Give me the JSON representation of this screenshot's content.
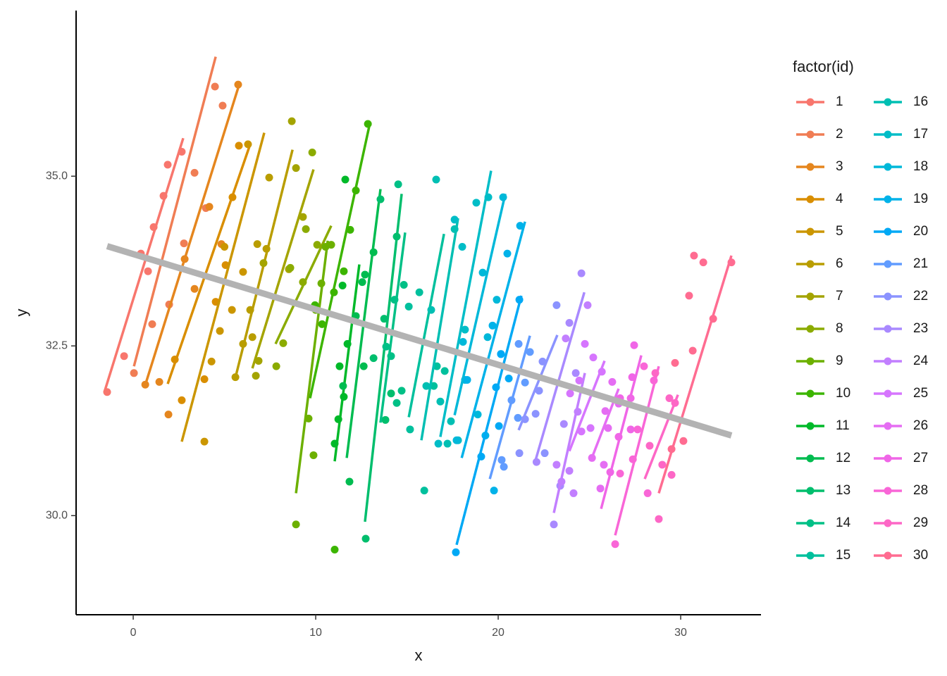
{
  "chart_data": {
    "type": "scatter",
    "x_label": "x",
    "y_label": "y",
    "legend_title": "factor(id)",
    "legend_position": "right",
    "xlim": [
      -3.13,
      34.4
    ],
    "ylim": [
      28.54,
      37.44
    ],
    "xticks": [
      0,
      10,
      20,
      30
    ],
    "yticks": [
      {
        "value": 30,
        "label": "30.0"
      },
      32.5,
      {
        "value": 35,
        "label": "35.0"
      }
    ],
    "overall_fit": {
      "color": "#B3B3B3",
      "x": [
        -1.43,
        32.78
      ],
      "y": [
        33.97,
        31.18
      ]
    },
    "series": [
      {
        "name": "1",
        "color": "#F8766D",
        "fit_x": [
          -1.58,
          2.74
        ],
        "fit_y": [
          31.82,
          35.56
        ],
        "x": [
          -1.43,
          -0.5,
          0.42,
          1.12,
          1.66,
          1.89,
          2.66,
          0.81
        ],
        "y": [
          31.82,
          32.35,
          33.86,
          34.25,
          34.71,
          35.17,
          35.36,
          33.6
        ]
      },
      {
        "name": "2",
        "color": "#F07D54",
        "fit_x": [
          0.04,
          4.52
        ],
        "fit_y": [
          32.2,
          36.76
        ],
        "x": [
          0.04,
          1.04,
          1.97,
          2.78,
          3.36,
          3.98,
          4.48,
          4.9
        ],
        "y": [
          32.1,
          32.82,
          33.11,
          34.01,
          35.05,
          34.53,
          36.32,
          36.04
        ]
      },
      {
        "name": "3",
        "color": "#E5861E",
        "fit_x": [
          0.62,
          5.83
        ],
        "fit_y": [
          31.89,
          36.37
        ],
        "x": [
          0.66,
          1.43,
          1.93,
          2.82,
          4.17,
          4.83,
          5.75,
          3.36
        ],
        "y": [
          31.93,
          31.97,
          31.49,
          33.78,
          34.55,
          34.0,
          36.35,
          33.34
        ]
      },
      {
        "name": "4",
        "color": "#D98E00",
        "fit_x": [
          1.89,
          6.41
        ],
        "fit_y": [
          31.94,
          35.47
        ],
        "x": [
          2.28,
          2.66,
          3.9,
          4.52,
          5.06,
          5.79,
          5.44
        ],
        "y": [
          32.3,
          31.7,
          32.01,
          33.15,
          33.69,
          35.45,
          34.69
        ]
      },
      {
        "name": "5",
        "color": "#CB9600",
        "fit_x": [
          2.66,
          7.18
        ],
        "fit_y": [
          31.09,
          35.64
        ],
        "x": [
          3.9,
          4.29,
          4.75,
          5.41,
          6.29,
          6.02,
          5.0
        ],
        "y": [
          31.09,
          32.27,
          32.72,
          33.03,
          35.47,
          33.59,
          33.96
        ]
      },
      {
        "name": "6",
        "color": "#B99D00",
        "fit_x": [
          5.56,
          8.73
        ],
        "fit_y": [
          31.99,
          35.39
        ],
        "x": [
          5.6,
          6.02,
          6.41,
          6.8,
          7.45,
          7.3,
          6.53
        ],
        "y": [
          32.04,
          32.53,
          33.03,
          34.0,
          34.98,
          33.93,
          32.63
        ]
      },
      {
        "name": "7",
        "color": "#A4A400",
        "fit_x": [
          6.53,
          9.88
        ],
        "fit_y": [
          32.17,
          35.1
        ],
        "x": [
          6.72,
          6.87,
          7.14,
          8.53,
          8.69,
          8.92,
          9.3
        ],
        "y": [
          32.06,
          32.28,
          33.72,
          33.63,
          35.81,
          35.12,
          34.4
        ]
      },
      {
        "name": "8",
        "color": "#8BAB00",
        "fit_x": [
          7.8,
          10.85
        ],
        "fit_y": [
          32.53,
          34.27
        ],
        "x": [
          7.84,
          8.22,
          8.61,
          9.3,
          9.46,
          9.81,
          10.08
        ],
        "y": [
          32.2,
          32.54,
          33.65,
          33.44,
          34.22,
          35.35,
          33.99
        ]
      },
      {
        "name": "9",
        "color": "#6CB000",
        "fit_x": [
          8.92,
          10.66
        ],
        "fit_y": [
          30.33,
          34.05
        ],
        "x": [
          8.92,
          9.61,
          9.88,
          10.0,
          10.31,
          10.54,
          10.85
        ],
        "y": [
          29.87,
          31.43,
          30.89,
          33.03,
          33.42,
          33.96,
          33.99
        ]
      },
      {
        "name": "10",
        "color": "#3CB500",
        "fit_x": [
          9.69,
          12.97
        ],
        "fit_y": [
          31.73,
          35.78
        ],
        "x": [
          9.96,
          10.35,
          11.0,
          11.54,
          11.89,
          12.2,
          12.86,
          11.04
        ],
        "y": [
          33.1,
          32.82,
          33.29,
          33.6,
          34.21,
          34.79,
          35.77,
          29.5
        ]
      },
      {
        "name": "11",
        "color": "#00B929",
        "fit_x": [
          11.04,
          12.39
        ],
        "fit_y": [
          30.8,
          33.7
        ],
        "x": [
          11.04,
          11.24,
          11.47,
          11.62,
          11.74,
          11.31,
          11.54
        ],
        "y": [
          31.06,
          31.42,
          33.39,
          34.95,
          32.53,
          32.2,
          31.75
        ]
      },
      {
        "name": "12",
        "color": "#00BC50",
        "fit_x": [
          11.7,
          13.55
        ],
        "fit_y": [
          30.85,
          34.81
        ],
        "x": [
          11.85,
          11.5,
          12.2,
          12.55,
          12.63,
          12.7,
          13.17
        ],
        "y": [
          30.5,
          31.91,
          32.94,
          33.44,
          32.2,
          33.55,
          33.88
        ]
      },
      {
        "name": "13",
        "color": "#00BE6D",
        "fit_x": [
          12.7,
          14.71
        ],
        "fit_y": [
          29.91,
          34.74
        ],
        "x": [
          12.74,
          13.17,
          13.55,
          13.82,
          14.13,
          14.44,
          13.75
        ],
        "y": [
          29.66,
          32.32,
          34.66,
          31.41,
          31.8,
          34.11,
          32.9
        ]
      },
      {
        "name": "14",
        "color": "#00C086",
        "fit_x": [
          13.55,
          14.9
        ],
        "fit_y": [
          31.37,
          34.17
        ],
        "x": [
          13.86,
          14.13,
          14.32,
          14.52,
          14.44,
          14.71,
          14.83
        ],
        "y": [
          32.49,
          32.35,
          33.18,
          34.88,
          31.66,
          31.84,
          33.4
        ]
      },
      {
        "name": "15",
        "color": "#00C09D",
        "fit_x": [
          15.1,
          17.03
        ],
        "fit_y": [
          31.45,
          34.15
        ],
        "x": [
          15.17,
          15.1,
          15.95,
          15.68,
          16.47,
          16.64,
          17.07
        ],
        "y": [
          31.27,
          33.08,
          30.37,
          33.29,
          31.91,
          32.2,
          32.13
        ]
      },
      {
        "name": "16",
        "color": "#00BFB3",
        "fit_x": [
          15.79,
          17.8
        ],
        "fit_y": [
          31.11,
          34.38
        ],
        "x": [
          16.06,
          16.33,
          16.6,
          16.83,
          17.22,
          17.61,
          17.41
        ],
        "y": [
          31.91,
          33.03,
          34.95,
          31.68,
          31.06,
          34.22,
          31.39
        ]
      },
      {
        "name": "17",
        "color": "#00BDC7",
        "fit_x": [
          16.83,
          19.61
        ],
        "fit_y": [
          31.16,
          35.08
        ],
        "x": [
          16.72,
          17.61,
          18.03,
          18.18,
          18.8,
          19.46,
          17.8
        ],
        "y": [
          31.06,
          34.36,
          33.96,
          32.74,
          34.61,
          34.69,
          31.11
        ]
      },
      {
        "name": "18",
        "color": "#00B8D9",
        "fit_x": [
          17.61,
          20.39
        ],
        "fit_y": [
          31.48,
          34.74
        ],
        "x": [
          17.72,
          18.07,
          18.88,
          19.15,
          19.42,
          19.92,
          20.27,
          18.18
        ],
        "y": [
          31.11,
          32.56,
          31.49,
          33.58,
          32.63,
          33.18,
          34.69,
          32.0
        ]
      },
      {
        "name": "19",
        "color": "#00B2E9",
        "fit_x": [
          18.0,
          21.47
        ],
        "fit_y": [
          30.85,
          34.33
        ],
        "x": [
          18.3,
          19.3,
          19.69,
          19.77,
          20.15,
          20.5,
          21.2
        ],
        "y": [
          32.0,
          31.18,
          32.8,
          30.37,
          32.38,
          33.86,
          34.27
        ]
      },
      {
        "name": "20",
        "color": "#00A9F5",
        "fit_x": [
          17.72,
          21.27
        ],
        "fit_y": [
          29.57,
          33.24
        ],
        "x": [
          17.68,
          19.07,
          19.88,
          20.04,
          20.58,
          21.16,
          20.15
        ],
        "y": [
          29.46,
          30.87,
          31.89,
          31.32,
          32.02,
          33.18,
          32.38
        ]
      },
      {
        "name": "21",
        "color": "#619CFF",
        "fit_x": [
          19.54,
          21.74
        ],
        "fit_y": [
          30.54,
          32.65
        ],
        "x": [
          20.19,
          20.31,
          20.73,
          21.12,
          21.47,
          21.08,
          21.74
        ],
        "y": [
          30.82,
          30.72,
          31.7,
          32.53,
          31.96,
          31.44,
          32.41
        ]
      },
      {
        "name": "22",
        "color": "#8B93FF",
        "fit_x": [
          21.12,
          23.24
        ],
        "fit_y": [
          31.26,
          32.66
        ],
        "x": [
          21.16,
          21.47,
          22.05,
          22.24,
          22.43,
          22.55,
          23.2
        ],
        "y": [
          30.92,
          31.42,
          31.5,
          31.84,
          32.27,
          30.92,
          33.1
        ]
      },
      {
        "name": "23",
        "color": "#A989FF",
        "fit_x": [
          22.05,
          24.72
        ],
        "fit_y": [
          30.82,
          33.29
        ],
        "x": [
          22.1,
          23.05,
          23.4,
          23.6,
          23.9,
          24.25,
          24.56
        ],
        "y": [
          30.79,
          29.87,
          30.44,
          31.35,
          32.84,
          32.1,
          33.57
        ]
      },
      {
        "name": "24",
        "color": "#C27FFF",
        "fit_x": [
          23.05,
          24.75
        ],
        "fit_y": [
          30.04,
          32.1
        ],
        "x": [
          23.2,
          23.47,
          23.9,
          23.7,
          24.36,
          24.9,
          24.13
        ],
        "y": [
          30.75,
          30.5,
          30.66,
          32.61,
          31.53,
          33.1,
          30.33
        ]
      },
      {
        "name": "25",
        "color": "#D675FE",
        "fit_x": [
          23.9,
          25.83
        ],
        "fit_y": [
          30.95,
          32.28
        ],
        "x": [
          23.94,
          24.44,
          24.75,
          25.06,
          25.21,
          25.68,
          24.56
        ],
        "y": [
          31.8,
          31.99,
          32.53,
          31.29,
          32.33,
          32.12,
          31.24
        ]
      },
      {
        "name": "26",
        "color": "#E56DF3",
        "fit_x": [
          25.06,
          26.6
        ],
        "fit_y": [
          30.8,
          31.87
        ],
        "x": [
          25.6,
          25.79,
          25.87,
          26.02,
          26.25,
          25.14,
          26.6
        ],
        "y": [
          30.4,
          30.75,
          31.54,
          31.29,
          31.97,
          30.85,
          31.65
        ]
      },
      {
        "name": "27",
        "color": "#F066E7",
        "fit_x": [
          25.64,
          27.84
        ],
        "fit_y": [
          30.1,
          32.36
        ],
        "x": [
          26.14,
          26.6,
          26.68,
          27.26,
          27.34,
          27.45,
          27.26
        ],
        "y": [
          30.64,
          31.16,
          31.73,
          31.27,
          32.04,
          32.51,
          31.73
        ]
      },
      {
        "name": "28",
        "color": "#F966D7",
        "fit_x": [
          26.41,
          28.8
        ],
        "fit_y": [
          29.71,
          32.2
        ],
        "x": [
          26.41,
          26.68,
          27.38,
          27.64,
          27.99,
          28.19,
          28.53
        ],
        "y": [
          29.58,
          30.62,
          30.83,
          31.27,
          32.2,
          30.33,
          31.99
        ]
      },
      {
        "name": "29",
        "color": "#FD67C6",
        "fit_x": [
          28.03,
          29.85
        ],
        "fit_y": [
          30.54,
          31.78
        ],
        "x": [
          28.3,
          28.61,
          28.8,
          28.99,
          29.38,
          29.5,
          29.69
        ],
        "y": [
          31.03,
          32.1,
          29.95,
          30.75,
          31.73,
          30.6,
          31.66
        ]
      },
      {
        "name": "30",
        "color": "#FF6C91",
        "fit_x": [
          28.8,
          32.78
        ],
        "fit_y": [
          30.33,
          33.83
        ],
        "x": [
          29.5,
          29.69,
          30.15,
          30.46,
          30.66,
          30.73,
          31.24,
          31.78,
          32.78
        ],
        "y": [
          30.98,
          32.25,
          31.1,
          33.24,
          32.43,
          33.83,
          33.73,
          32.9,
          33.73
        ]
      }
    ]
  }
}
